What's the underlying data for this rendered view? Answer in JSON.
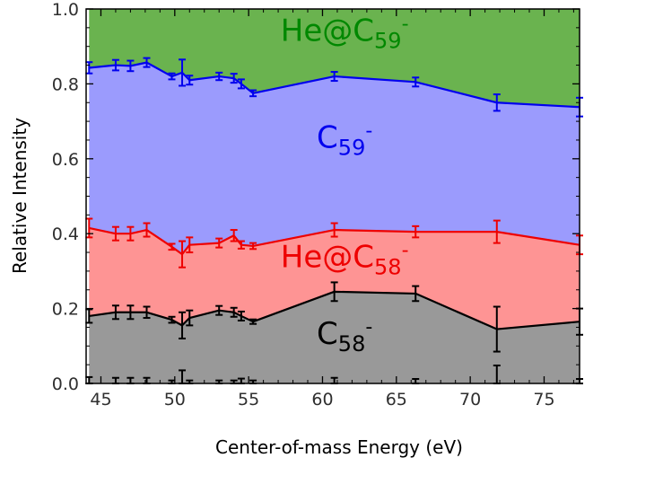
{
  "chart_data": {
    "type": "area",
    "title": "",
    "xlabel": "Center-of-mass Energy (eV)",
    "ylabel": "Relative Intensity",
    "xlim": [
      44,
      77.4
    ],
    "ylim": [
      0,
      1.0
    ],
    "x_ticks": [
      45,
      50,
      55,
      60,
      65,
      70,
      75
    ],
    "x_tick_labels": [
      "45",
      "50",
      "55",
      "60",
      "65",
      "70",
      "75"
    ],
    "y_ticks": [
      0.0,
      0.2,
      0.4,
      0.6,
      0.8,
      1.0
    ],
    "y_tick_labels": [
      "0.0",
      "0.2",
      "0.4",
      "0.6",
      "0.8",
      "1.0"
    ],
    "grid": false,
    "stacked": true,
    "x": [
      44.2,
      46.0,
      47.0,
      48.1,
      49.8,
      50.5,
      51.0,
      53.0,
      54.0,
      54.5,
      55.3,
      60.8,
      66.3,
      71.8,
      77.4
    ],
    "series": [
      {
        "name": "C58-",
        "label_main": "C",
        "label_sub": "58",
        "label_sup": "-",
        "color": "#000000",
        "fill": "#999999",
        "cumulative": [
          0.18,
          0.19,
          0.19,
          0.19,
          0.17,
          0.155,
          0.175,
          0.195,
          0.19,
          0.18,
          0.165,
          0.245,
          0.24,
          0.145,
          0.165
        ],
        "errors": [
          0.018,
          0.018,
          0.018,
          0.015,
          0.008,
          0.035,
          0.02,
          0.012,
          0.012,
          0.012,
          0.006,
          0.025,
          0.02,
          0.06,
          0.035
        ],
        "baseline": [
          0.005,
          0.005,
          0.005,
          0.005,
          0.0,
          0.015,
          0.0,
          0.0,
          0.0,
          0.005,
          0.0,
          0.0,
          0.0,
          0.02,
          0.0
        ],
        "baseline_errors": [
          0.012,
          0.01,
          0.01,
          0.01,
          0.008,
          0.02,
          0.008,
          0.008,
          0.008,
          0.008,
          0.008,
          0.015,
          0.012,
          0.028,
          0.012
        ]
      },
      {
        "name": "He@C58-",
        "label_main": "He@C",
        "label_sub": "58",
        "label_sup": "-",
        "color": "#ee0000",
        "fill": "#fe9494",
        "cumulative": [
          0.415,
          0.4,
          0.4,
          0.41,
          0.365,
          0.345,
          0.37,
          0.375,
          0.395,
          0.37,
          0.367,
          0.41,
          0.405,
          0.405,
          0.37
        ],
        "errors": [
          0.025,
          0.018,
          0.018,
          0.018,
          0.008,
          0.035,
          0.02,
          0.012,
          0.015,
          0.01,
          0.008,
          0.018,
          0.015,
          0.03,
          0.025
        ]
      },
      {
        "name": "C59-",
        "label_main": "C",
        "label_sub": "59",
        "label_sup": "-",
        "color": "#0000ee",
        "fill": "#9b9bfd",
        "cumulative": [
          0.843,
          0.85,
          0.848,
          0.857,
          0.82,
          0.83,
          0.81,
          0.82,
          0.815,
          0.8,
          0.775,
          0.82,
          0.805,
          0.75,
          0.738
        ],
        "errors": [
          0.015,
          0.014,
          0.014,
          0.012,
          0.008,
          0.035,
          0.012,
          0.01,
          0.012,
          0.012,
          0.008,
          0.012,
          0.012,
          0.022,
          0.025
        ]
      },
      {
        "name": "He@C59-",
        "label_main": "He@C",
        "label_sub": "59",
        "label_sup": "-",
        "color": "#008800",
        "fill": "#6ab34f",
        "cumulative": [
          1.0,
          1.0,
          1.0,
          1.0,
          1.0,
          1.0,
          1.0,
          1.0,
          1.0,
          1.0,
          1.0,
          1.0,
          1.0,
          1.0,
          1.0
        ]
      }
    ],
    "region_labels": [
      {
        "series": "He@C59-",
        "x": 61.5,
        "y": 0.915,
        "color": "#008800"
      },
      {
        "series": "C59-",
        "x": 61.5,
        "y": 0.63,
        "color": "#0000ee"
      },
      {
        "series": "He@C58-",
        "x": 61.5,
        "y": 0.31,
        "color": "#ee0000"
      },
      {
        "series": "C58-",
        "x": 61.5,
        "y": 0.105,
        "color": "#000000"
      }
    ]
  }
}
